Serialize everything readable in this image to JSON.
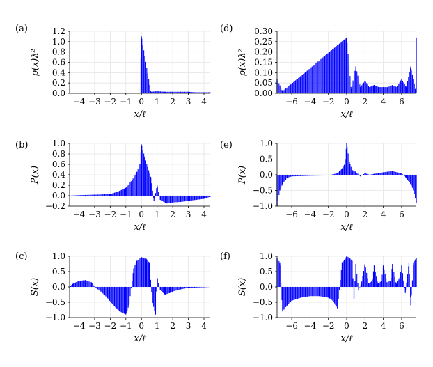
{
  "chart_data": [
    {
      "panel": "(a)",
      "type": "bar",
      "ylabel": "ρ(x)λ²",
      "xlabel": "x/ℓ",
      "xlim": [
        -4.6,
        4.4
      ],
      "ylim": [
        0.0,
        1.2
      ],
      "xticks": [
        -4,
        -3,
        -2,
        -1,
        0,
        1,
        2,
        3,
        4
      ],
      "xticklabels": [
        "−4",
        "−3",
        "−2",
        "−1",
        "0",
        "1",
        "2",
        "3",
        "4"
      ],
      "yticks": [
        0.0,
        0.2,
        0.4,
        0.6,
        0.8,
        1.0,
        1.2
      ],
      "yticklabels": [
        "0.0",
        "0.2",
        "0.4",
        "0.6",
        "0.8",
        "1.0",
        "1.2"
      ],
      "grid": true,
      "x": [
        -0.1,
        0.0,
        0.6,
        1.0,
        1.5,
        2.0,
        2.5,
        3.0,
        3.5,
        4.0,
        4.3
      ],
      "values": [
        0.0,
        1.1,
        0.03,
        0.04,
        0.03,
        0.03,
        0.03,
        0.03,
        0.02,
        0.02,
        0.02
      ]
    },
    {
      "panel": "(d)",
      "type": "bar",
      "ylabel": "ρ(x)λ²",
      "xlabel": "x/ℓ",
      "xlim": [
        -7.6,
        7.6
      ],
      "ylim": [
        0.0,
        0.3
      ],
      "xticks": [
        -6,
        -4,
        -2,
        0,
        2,
        4,
        6
      ],
      "xticklabels": [
        "−6",
        "−4",
        "−2",
        "0",
        "2",
        "4",
        "6"
      ],
      "yticks": [
        0.0,
        0.05,
        0.1,
        0.15,
        0.2,
        0.25,
        0.3
      ],
      "yticklabels": [
        "0.00",
        "0.05",
        "0.10",
        "0.15",
        "0.20",
        "0.25",
        "0.30"
      ],
      "grid": true,
      "x": [
        -7.6,
        -7.0,
        0.0,
        0.5,
        1.0,
        1.5,
        2.0,
        2.5,
        3.0,
        3.5,
        4.0,
        4.5,
        5.0,
        5.5,
        6.0,
        6.5,
        7.0,
        7.5,
        7.6
      ],
      "values": [
        0.07,
        0.01,
        0.27,
        0.02,
        0.13,
        0.03,
        0.06,
        0.03,
        0.04,
        0.03,
        0.03,
        0.03,
        0.04,
        0.03,
        0.07,
        0.03,
        0.13,
        0.02,
        0.27
      ]
    },
    {
      "panel": "(b)",
      "type": "bar",
      "ylabel": "P(x)",
      "xlabel": "x/ℓ",
      "xlim": [
        -4.6,
        4.4
      ],
      "ylim": [
        -0.2,
        1.0
      ],
      "xticks": [
        -4,
        -3,
        -2,
        -1,
        0,
        1,
        2,
        3,
        4
      ],
      "xticklabels": [
        "−4",
        "−3",
        "−2",
        "−1",
        "0",
        "1",
        "2",
        "3",
        "4"
      ],
      "yticks": [
        -0.2,
        0.0,
        0.2,
        0.4,
        0.6,
        0.8,
        1.0
      ],
      "yticklabels": [
        "−0.2",
        "0.0",
        "0.2",
        "0.4",
        "0.6",
        "0.8",
        "1.0"
      ],
      "grid": true,
      "x": [
        -4.6,
        -4.0,
        -3.0,
        -2.0,
        -1.5,
        -1.0,
        -0.6,
        -0.3,
        -0.1,
        0.0,
        0.2,
        0.4,
        0.6,
        0.8,
        1.0,
        1.2,
        1.6,
        2.0,
        2.5,
        3.0,
        3.5,
        4.0,
        4.4
      ],
      "values": [
        0.0,
        0.01,
        0.02,
        0.03,
        0.08,
        0.15,
        0.3,
        0.45,
        0.6,
        0.98,
        0.75,
        0.55,
        0.35,
        -0.1,
        0.2,
        -0.08,
        -0.15,
        -0.13,
        -0.12,
        -0.1,
        -0.08,
        -0.06,
        -0.02
      ]
    },
    {
      "panel": "(e)",
      "type": "bar",
      "ylabel": "P(x)",
      "xlabel": "x/ℓ",
      "xlim": [
        -7.6,
        7.6
      ],
      "ylim": [
        -1.0,
        1.0
      ],
      "xticks": [
        -6,
        -4,
        -2,
        0,
        2,
        4,
        6
      ],
      "xticklabels": [
        "−6",
        "−4",
        "−2",
        "0",
        "2",
        "4",
        "6"
      ],
      "yticks": [
        -1.0,
        -0.5,
        0.0,
        0.5,
        1.0
      ],
      "yticklabels": [
        "−1.0",
        "−0.5",
        "0.0",
        "0.5",
        "1.0"
      ],
      "grid": true,
      "x": [
        -7.6,
        -7.3,
        -7.0,
        -6.5,
        -6.0,
        -4.0,
        -2.0,
        -1.0,
        -0.5,
        -0.2,
        0.0,
        0.3,
        0.6,
        1.0,
        1.5,
        2.0,
        2.5,
        3.0,
        3.5,
        4.0,
        4.5,
        5.0,
        5.5,
        6.0,
        6.5,
        7.0,
        7.3,
        7.6
      ],
      "values": [
        -1.0,
        -0.5,
        -0.3,
        -0.1,
        -0.05,
        -0.03,
        -0.02,
        0.05,
        0.2,
        0.35,
        1.0,
        0.4,
        0.15,
        0.1,
        -0.05,
        0.05,
        0.0,
        0.03,
        0.05,
        0.08,
        0.1,
        0.12,
        0.08,
        0.05,
        -0.1,
        -0.3,
        -0.5,
        -0.9
      ]
    },
    {
      "panel": "(c)",
      "type": "bar",
      "ylabel": "S(x)",
      "xlabel": "x/ℓ",
      "xlim": [
        -4.6,
        4.4
      ],
      "ylim": [
        -1.0,
        1.0
      ],
      "xticks": [
        -4,
        -3,
        -2,
        -1,
        0,
        1,
        2,
        3,
        4
      ],
      "xticklabels": [
        "−4",
        "−3",
        "−2",
        "−1",
        "0",
        "1",
        "2",
        "3",
        "4"
      ],
      "yticks": [
        -1.0,
        -0.5,
        0.0,
        0.5,
        1.0
      ],
      "yticklabels": [
        "−1.0",
        "−0.5",
        "0.0",
        "0.5",
        "1.0"
      ],
      "grid": true,
      "x": [
        -4.6,
        -4.4,
        -4.0,
        -3.6,
        -3.2,
        -3.0,
        -2.6,
        -2.2,
        -1.8,
        -1.4,
        -1.0,
        -0.8,
        -0.5,
        -0.3,
        0.0,
        0.3,
        0.5,
        0.7,
        0.9,
        1.0,
        1.2,
        1.5,
        1.8,
        2.0,
        2.5,
        3.0,
        3.5,
        4.0,
        4.4
      ],
      "values": [
        0.0,
        0.1,
        0.2,
        0.22,
        0.15,
        0.0,
        -0.15,
        -0.35,
        -0.6,
        -0.8,
        -0.9,
        -0.6,
        0.6,
        0.85,
        0.97,
        0.92,
        0.8,
        -0.5,
        -0.9,
        0.3,
        -0.1,
        -0.25,
        -0.2,
        -0.15,
        -0.08,
        -0.03,
        -0.02,
        -0.01,
        0.0
      ]
    },
    {
      "panel": "(f)",
      "type": "bar",
      "ylabel": "S(x)",
      "xlabel": "x/ℓ",
      "xlim": [
        -7.6,
        7.6
      ],
      "ylim": [
        -1.0,
        1.0
      ],
      "xticks": [
        -6,
        -4,
        -2,
        0,
        2,
        4,
        6
      ],
      "xticklabels": [
        "−6",
        "−4",
        "−2",
        "0",
        "2",
        "4",
        "6"
      ],
      "yticks": [
        -1.0,
        -0.5,
        0.0,
        0.5,
        1.0
      ],
      "yticklabels": [
        "−1.0",
        "−0.5",
        "0.0",
        "0.5",
        "1.0"
      ],
      "grid": true,
      "x": [
        -7.6,
        -7.3,
        -7.0,
        -6.5,
        -6.0,
        -5.0,
        -4.0,
        -3.0,
        -2.0,
        -1.5,
        -1.0,
        -0.5,
        -0.2,
        0.0,
        0.3,
        0.6,
        0.8,
        1.0,
        1.3,
        1.6,
        2.0,
        2.4,
        2.8,
        3.0,
        3.4,
        3.8,
        4.0,
        4.4,
        4.8,
        5.0,
        5.4,
        5.8,
        6.0,
        6.4,
        6.8,
        7.0,
        7.3,
        7.6
      ],
      "values": [
        0.95,
        0.8,
        -0.8,
        -0.6,
        -0.45,
        -0.35,
        -0.3,
        -0.3,
        -0.35,
        -0.45,
        -0.7,
        0.8,
        0.9,
        1.0,
        0.95,
        0.85,
        -0.4,
        0.75,
        -0.1,
        0.1,
        0.75,
        0.1,
        0.2,
        0.7,
        0.1,
        0.2,
        0.7,
        0.15,
        0.2,
        0.75,
        0.1,
        0.3,
        0.7,
        -0.2,
        0.8,
        -0.6,
        0.8,
        0.95
      ]
    }
  ]
}
